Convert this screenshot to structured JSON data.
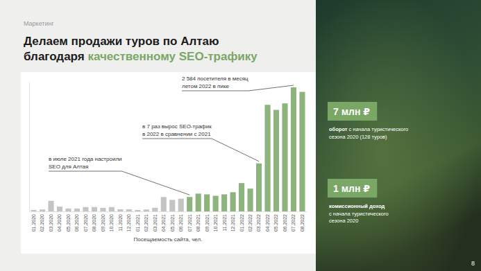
{
  "slide": {
    "section": "Маркетинг",
    "title_lines": [
      "Делаем продажи туров по Алтаю",
      "благодаря "
    ],
    "title_highlight": "качественному SEO-трафику",
    "stats": [
      {
        "value": "7 млн ₽",
        "bold": "оборот",
        "lines": [
          " с начала туристического",
          "сезона 2020 (128 туров)"
        ]
      },
      {
        "value": "1 млн ₽",
        "bold": "комиссионный доход",
        "lines": [
          "с начала туристического",
          "сезона 2020"
        ]
      }
    ],
    "page": "8"
  },
  "chart_data": {
    "type": "bar",
    "categories": [
      "01.2020",
      "02.2020",
      "03.2020",
      "04.2020",
      "05.2020",
      "06.2020",
      "07.2020",
      "08.2020",
      "09.2020",
      "10.2020",
      "11.2020",
      "12.2020",
      "01.2021",
      "02.2021",
      "03.2021",
      "04.2021",
      "05.2021",
      "06.2021",
      "07.2021",
      "08.2021",
      "09.2021",
      "10.2021",
      "11.2021",
      "12.2021",
      "01.2022",
      "02.2022",
      "03.2022",
      "04.2022",
      "05.2022",
      "06.2022",
      "07.2022",
      "08.2022"
    ],
    "values": [
      30,
      40,
      220,
      100,
      60,
      60,
      90,
      90,
      75,
      90,
      45,
      45,
      30,
      40,
      75,
      300,
      240,
      265,
      300,
      370,
      355,
      325,
      355,
      400,
      590,
      475,
      1000,
      2220,
      2115,
      2250,
      2584,
      2490
    ],
    "colors": [
      "#c4c4c4",
      "#c4c4c4",
      "#c4c4c4",
      "#c4c4c4",
      "#c4c4c4",
      "#c4c4c4",
      "#c4c4c4",
      "#c4c4c4",
      "#c4c4c4",
      "#c4c4c4",
      "#c4c4c4",
      "#c4c4c4",
      "#c4c4c4",
      "#c4c4c4",
      "#c4c4c4",
      "#c4c4c4",
      "#c4c4c4",
      "#c4c4c4",
      "#8db47c",
      "#8db47c",
      "#8db47c",
      "#8db47c",
      "#8db47c",
      "#8db47c",
      "#8db47c",
      "#8db47c",
      "#8db47c",
      "#8db47c",
      "#8db47c",
      "#8db47c",
      "#8db47c",
      "#8db47c"
    ],
    "ylim": [
      0,
      2700
    ],
    "tick_labels": "x",
    "xlabel": "Посещаемость сайта, чел.",
    "annotations": [
      {
        "lines": [
          "в июле 2021 года настроили",
          "SEO для Алтая"
        ],
        "x": "07.2021"
      },
      {
        "lines": [
          "в 7 раз вырос SEO-трафик",
          "в 2022 в сравнении с 2021"
        ],
        "x": "03.2022"
      },
      {
        "lines": [
          "2 584 посетителя в месяц",
          "летом 2022 в пике"
        ],
        "x": "07.2022"
      }
    ]
  }
}
